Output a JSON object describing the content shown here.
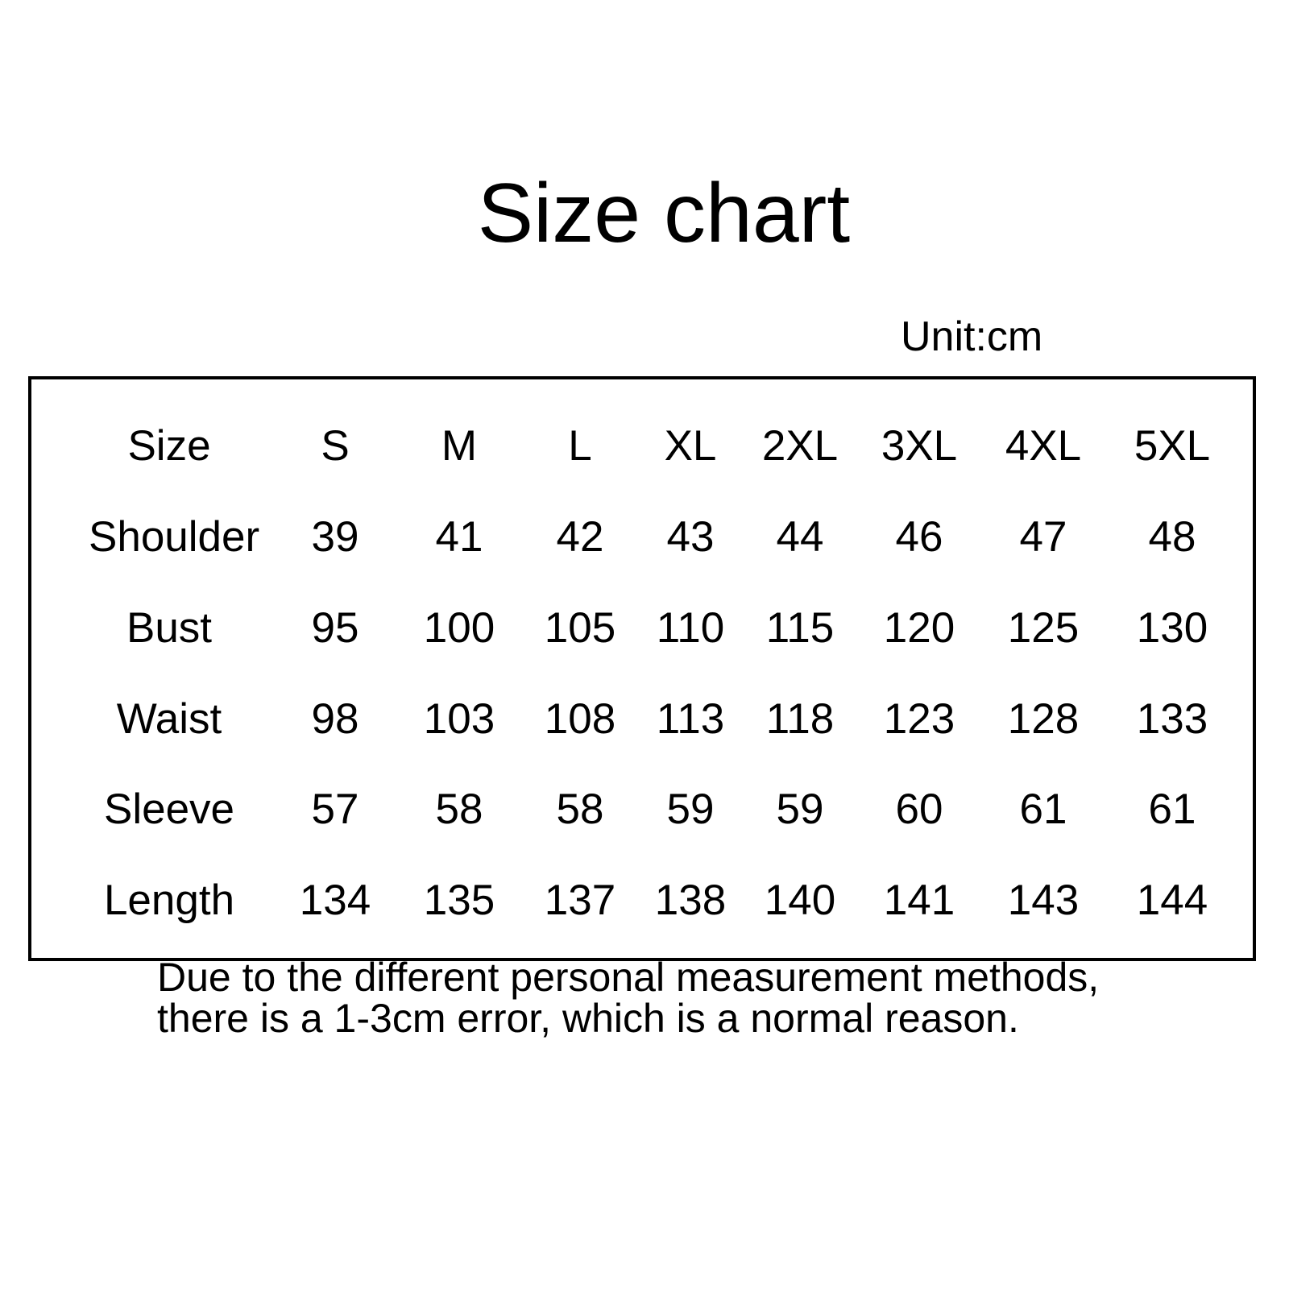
{
  "chart_data": {
    "type": "table",
    "title": "Size chart",
    "unit_label": "Unit:cm",
    "header": [
      "Size",
      "S",
      "M",
      "L",
      "XL",
      "2XL",
      "3XL",
      "4XL",
      "5XL"
    ],
    "rows": [
      {
        "label": "Shoulder",
        "values": [
          "39",
          "41",
          "42",
          "43",
          "44",
          "46",
          "47",
          "48"
        ]
      },
      {
        "label": "Bust",
        "values": [
          "95",
          "100",
          "105",
          "110",
          "115",
          "120",
          "125",
          "130"
        ]
      },
      {
        "label": "Waist",
        "values": [
          "98",
          "103",
          "108",
          "113",
          "118",
          "123",
          "128",
          "133"
        ]
      },
      {
        "label": "Sleeve",
        "values": [
          "57",
          "58",
          "58",
          "59",
          "59",
          "60",
          "61",
          "61"
        ]
      },
      {
        "label": "Length",
        "values": [
          "134",
          "135",
          "137",
          "138",
          "140",
          "141",
          "143",
          "144"
        ]
      }
    ],
    "note": [
      "Due to the different personal measurement methods,",
      "there is a 1-3cm error, which is a normal reason."
    ]
  }
}
